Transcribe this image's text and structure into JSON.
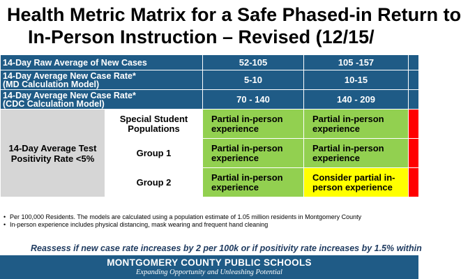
{
  "title": {
    "line1": "Health Metric Matrix for a Safe Phased-in Return to",
    "line2": "In-Person Instruction – Revised (12/15/"
  },
  "header_rows": [
    {
      "label_line1": "14-Day Raw Average of New Cases",
      "label_line2": "",
      "values": [
        "52-105",
        "105 -157",
        ""
      ]
    },
    {
      "label_line1": "14-Day Average New Case Rate*",
      "label_line2": "(MD Calculation Model)",
      "values": [
        "5-10",
        "10-15",
        ""
      ]
    },
    {
      "label_line1": "14-Day Average New Case Rate*",
      "label_line2": "(CDC Calculation Model)",
      "values": [
        "70 - 140",
        "140 - 209",
        ""
      ]
    }
  ],
  "metric_label": {
    "line1": "14-Day Average Test",
    "line2": "Positivity  Rate <5%"
  },
  "groups": [
    {
      "label_line1": "Special Student",
      "label_line2": "Populations",
      "cells": [
        {
          "color": "#92d050",
          "line1": "Partial in-person",
          "line2": "experience"
        },
        {
          "color": "#92d050",
          "line1": "Partial in-person",
          "line2": "experience"
        },
        {
          "color": "#ff0000",
          "line1": "",
          "line2": ""
        }
      ]
    },
    {
      "label_line1": "Group 1",
      "label_line2": "",
      "cells": [
        {
          "color": "#92d050",
          "line1": "Partial in-person",
          "line2": "experience"
        },
        {
          "color": "#92d050",
          "line1": "Partial in-person",
          "line2": "experience"
        },
        {
          "color": "#ff0000",
          "line1": "",
          "line2": ""
        }
      ]
    },
    {
      "label_line1": "Group 2",
      "label_line2": "",
      "cells": [
        {
          "color": "#92d050",
          "line1": "Partial in-person",
          "line2": "experience"
        },
        {
          "color": "#ffff00",
          "line1": "Consider partial in-",
          "line2": "person experience"
        },
        {
          "color": "#ff0000",
          "line1": "",
          "line2": ""
        }
      ]
    }
  ],
  "notes": [
    "Per 100,000 Residents.  The models are calculated using a population estimate of 1.05 million residents in Montgomery County",
    "In-person experience includes physical distancing, mask wearing and frequent hand cleaning"
  ],
  "reassess": "Reassess if new case rate increases by 2 per 100k or if positivity rate increases by 1.5% within",
  "footer": {
    "org": "MONTGOMERY COUNTY PUBLIC SCHOOLS",
    "tagline": "Expanding Opportunity and Unleashing Potential"
  },
  "colors": {
    "header_blue": "#1f5b86",
    "green": "#92d050",
    "yellow": "#ffff00",
    "red": "#ff0000",
    "gray": "#d6d6d6"
  }
}
